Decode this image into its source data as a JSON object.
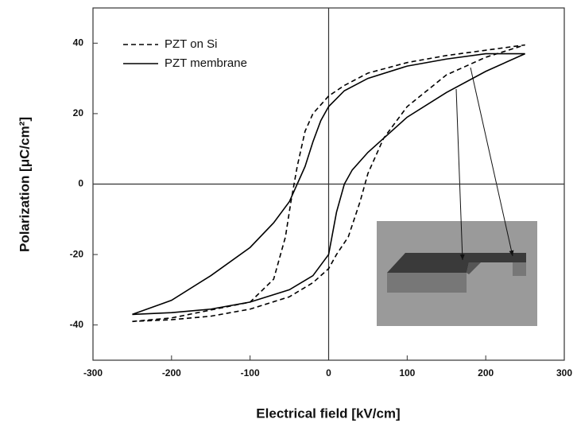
{
  "chart_data": {
    "type": "line",
    "x_label": "Electrical field [kV/cm]",
    "y_label": "Polarization [μC/cm²]",
    "xlim": [
      -300,
      300
    ],
    "xticks": [
      -300,
      -200,
      -100,
      0,
      100,
      200,
      300
    ],
    "ylim": [
      -50,
      50
    ],
    "yticks": [
      -40,
      -20,
      0,
      20,
      40
    ],
    "legend": "top left",
    "series": [
      {
        "name": "PZT on Si",
        "color": "#000000",
        "dash": true,
        "x": [
          -250,
          -200,
          -100,
          -70,
          -55,
          -48,
          -40,
          -30,
          -20,
          0,
          20,
          50,
          100,
          150,
          200,
          250,
          200,
          150,
          100,
          70,
          50,
          40,
          25,
          10,
          0,
          -20,
          -50,
          -100,
          -150,
          -200,
          -250
        ],
        "values": [
          -39,
          -38,
          -33.5,
          -27,
          -15,
          -5,
          5,
          15,
          20,
          25,
          28,
          31.5,
          34.5,
          36.5,
          38,
          39.5,
          36,
          31,
          22,
          13,
          3,
          -5,
          -15,
          -20,
          -24,
          -28,
          -32,
          -35.5,
          -37.5,
          -38.5,
          -39
        ]
      },
      {
        "name": "PZT membrane",
        "color": "#000000",
        "dash": false,
        "x": [
          -250,
          -200,
          -150,
          -100,
          -70,
          -50,
          -30,
          -20,
          -10,
          0,
          20,
          50,
          100,
          150,
          200,
          250,
          200,
          150,
          100,
          50,
          30,
          20,
          10,
          0,
          -20,
          -50,
          -100,
          -150,
          -200,
          -250
        ],
        "values": [
          -37,
          -33,
          -26,
          -18,
          -11,
          -5,
          5,
          12,
          18,
          22,
          26.5,
          30,
          33.5,
          35.5,
          37,
          37,
          32,
          26,
          19,
          9,
          4,
          0,
          -8,
          -20,
          -26,
          -30,
          -33.5,
          -35.5,
          -36.5,
          -37
        ]
      }
    ]
  }
}
